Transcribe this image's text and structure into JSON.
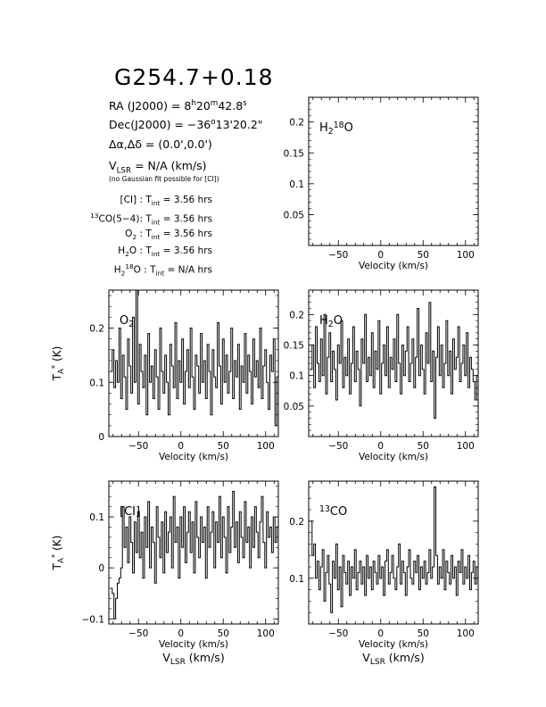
{
  "header": {
    "title": "G254.7+0.18",
    "ra_label": "RA (J2000) =",
    "ra_value": "8h20m42.8s",
    "ra_h": "8",
    "ra_m": "20",
    "ra_s": "42.8",
    "dec_label": "Dec(J2000) =",
    "dec_value": "−36°13'20.2\"",
    "dec_deg": "−36",
    "dec_rest": "13'20.2\"",
    "offset_label": "Δα,Δδ =",
    "offset_value": "(0.0',0.0')",
    "vlsr_label": "V",
    "vlsr_sub": "LSR",
    "vlsr_value": "= N/A  (km/s)",
    "note": "(no Gaussian fit possible for [CI])"
  },
  "integrations": [
    {
      "species": "[CI] :",
      "tint": "T",
      "tint_sub": "int",
      "value": "= 3.56 hrs"
    },
    {
      "species_sup": "13",
      "species": "CO(5−4):",
      "tint": "T",
      "tint_sub": "int",
      "value": "= 3.56 hrs"
    },
    {
      "species": "O",
      "species_sub": "2",
      "species_rest": " :",
      "tint": "T",
      "tint_sub": "int",
      "value": "= 3.56 hrs"
    },
    {
      "species": "H",
      "species_sub": "2",
      "species_rest": "O :",
      "tint": "T",
      "tint_sub": "int",
      "value": "= 3.56 hrs"
    },
    {
      "species": "H",
      "species_sub": "2",
      "species_sup": "18",
      "species_rest": "O :",
      "tint": "T",
      "tint_sub": "int",
      "value": "= N/A hrs"
    }
  ],
  "axis_text": {
    "velocity": "Velocity (km/s)",
    "vlsr": "V",
    "vlsr_sub": "LSR",
    "vlsr_unit": " (km/s)",
    "ylabel": "T",
    "ylabel_sub": "A",
    "ylabel_sup": "*",
    "ylabel_unit": " (K)"
  },
  "chart_data": [
    {
      "type": "line",
      "panel": "H2 18O",
      "label": "H",
      "label_sub": "2",
      "label_sup": "18",
      "label_rest": "O",
      "xlim": [
        -85,
        115
      ],
      "ylim": [
        0,
        0.24
      ],
      "xticks": [
        -50,
        0,
        50,
        100
      ],
      "yticks": [
        0.05,
        0.1,
        0.15,
        0.2
      ],
      "ytick_labels": [
        "0.05",
        "0.1",
        "0.15",
        "0.2"
      ],
      "x": [],
      "y": []
    },
    {
      "type": "line",
      "panel": "O2",
      "label": "O",
      "label_sub": "2",
      "label_rest": "",
      "xlim": [
        -85,
        115
      ],
      "ylim": [
        0,
        0.27
      ],
      "xticks": [
        -50,
        0,
        50,
        100
      ],
      "yticks": [
        0,
        0.1,
        0.2
      ],
      "ytick_labels": [
        "0",
        "0.1",
        "0.2"
      ],
      "x": [
        -82,
        -80,
        -78,
        -76,
        -74,
        -72,
        -70,
        -68,
        -66,
        -64,
        -62,
        -60,
        -58,
        -56,
        -54,
        -52,
        -50,
        -48,
        -46,
        -44,
        -42,
        -40,
        -38,
        -36,
        -34,
        -32,
        -30,
        -28,
        -26,
        -24,
        -22,
        -20,
        -18,
        -16,
        -14,
        -12,
        -10,
        -8,
        -6,
        -4,
        -2,
        0,
        2,
        4,
        6,
        8,
        10,
        12,
        14,
        16,
        18,
        20,
        22,
        24,
        26,
        28,
        30,
        32,
        34,
        36,
        38,
        40,
        42,
        44,
        46,
        48,
        50,
        52,
        54,
        56,
        58,
        60,
        62,
        64,
        66,
        68,
        70,
        72,
        74,
        76,
        78,
        80,
        82,
        84,
        86,
        88,
        90,
        92,
        94,
        96,
        98,
        100,
        102,
        104,
        106,
        108,
        110,
        112,
        114
      ],
      "y": [
        0.12,
        0.16,
        0.09,
        0.14,
        0.1,
        0.2,
        0.07,
        0.15,
        0.11,
        0.05,
        0.18,
        0.13,
        0.08,
        0.22,
        0.1,
        0.27,
        0.06,
        0.17,
        0.12,
        0.09,
        0.15,
        0.04,
        0.19,
        0.1,
        0.13,
        0.07,
        0.16,
        0.11,
        0.05,
        0.2,
        0.12,
        0.08,
        0.15,
        0.1,
        0.04,
        0.17,
        0.13,
        0.09,
        0.21,
        0.07,
        0.14,
        0.1,
        0.18,
        0.06,
        0.12,
        0.16,
        0.09,
        0.2,
        0.11,
        0.05,
        0.15,
        0.13,
        0.08,
        0.19,
        0.1,
        0.14,
        0.07,
        0.17,
        0.12,
        0.04,
        0.16,
        0.11,
        0.09,
        0.21,
        0.13,
        0.06,
        0.18,
        0.1,
        0.15,
        0.08,
        0.12,
        0.2,
        0.07,
        0.14,
        0.11,
        0.17,
        0.05,
        0.13,
        0.1,
        0.19,
        0.08,
        0.15,
        0.12,
        0.06,
        0.18,
        0.11,
        0.14,
        0.09,
        0.2,
        0.07,
        0.13,
        0.16,
        0.1,
        0.05,
        0.15,
        0.12,
        0.18,
        0.02,
        0.11
      ]
    },
    {
      "type": "line",
      "panel": "H2O",
      "label": "H",
      "label_sub": "2",
      "label_rest": "O",
      "xlim": [
        -85,
        115
      ],
      "ylim": [
        0,
        0.24
      ],
      "xticks": [
        -50,
        0,
        50,
        100
      ],
      "yticks": [
        0.05,
        0.1,
        0.15,
        0.2
      ],
      "ytick_labels": [
        "0.05",
        "0.1",
        "0.15",
        "0.2"
      ],
      "x": [
        -82,
        -80,
        -78,
        -76,
        -74,
        -72,
        -70,
        -68,
        -66,
        -64,
        -62,
        -60,
        -58,
        -56,
        -54,
        -52,
        -50,
        -48,
        -46,
        -44,
        -42,
        -40,
        -38,
        -36,
        -34,
        -32,
        -30,
        -28,
        -26,
        -24,
        -22,
        -20,
        -18,
        -16,
        -14,
        -12,
        -10,
        -8,
        -6,
        -4,
        -2,
        0,
        2,
        4,
        6,
        8,
        10,
        12,
        14,
        16,
        18,
        20,
        22,
        24,
        26,
        28,
        30,
        32,
        34,
        36,
        38,
        40,
        42,
        44,
        46,
        48,
        50,
        52,
        54,
        56,
        58,
        60,
        62,
        64,
        66,
        68,
        70,
        72,
        74,
        76,
        78,
        80,
        82,
        84,
        86,
        88,
        90,
        92,
        94,
        96,
        98,
        100,
        102,
        104,
        106,
        108,
        110,
        112,
        114
      ],
      "y": [
        0.11,
        0.15,
        0.08,
        0.18,
        0.12,
        0.09,
        0.16,
        0.1,
        0.2,
        0.07,
        0.13,
        0.17,
        0.09,
        0.14,
        0.11,
        0.06,
        0.15,
        0.12,
        0.19,
        0.08,
        0.13,
        0.1,
        0.16,
        0.07,
        0.12,
        0.18,
        0.09,
        0.14,
        0.11,
        0.05,
        0.16,
        0.12,
        0.2,
        0.09,
        0.13,
        0.1,
        0.17,
        0.08,
        0.14,
        0.11,
        0.19,
        0.07,
        0.12,
        0.15,
        0.1,
        0.18,
        0.08,
        0.13,
        0.11,
        0.16,
        0.09,
        0.2,
        0.12,
        0.07,
        0.15,
        0.1,
        0.14,
        0.18,
        0.09,
        0.12,
        0.16,
        0.08,
        0.13,
        0.21,
        0.1,
        0.15,
        0.11,
        0.07,
        0.17,
        0.12,
        0.22,
        0.09,
        0.14,
        0.03,
        0.13,
        0.18,
        0.1,
        0.15,
        0.08,
        0.12,
        0.19,
        0.1,
        0.14,
        0.07,
        0.16,
        0.11,
        0.13,
        0.18,
        0.09,
        0.12,
        0.15,
        0.1,
        0.17,
        0.08,
        0.13,
        0.11,
        0.09,
        0.06,
        0.1
      ]
    },
    {
      "type": "line",
      "panel": "[CI]",
      "label": "[CI]",
      "label_rest": "",
      "xlim": [
        -85,
        115
      ],
      "ylim": [
        -0.11,
        0.17
      ],
      "xticks": [
        -50,
        0,
        50,
        100
      ],
      "yticks": [
        -0.1,
        0,
        0.1
      ],
      "ytick_labels": [
        "−0.1",
        "0",
        "0.1"
      ],
      "x": [
        -82,
        -80,
        -78,
        -76,
        -74,
        -72,
        -70,
        -68,
        -66,
        -64,
        -62,
        -60,
        -58,
        -56,
        -54,
        -52,
        -50,
        -48,
        -46,
        -44,
        -42,
        -40,
        -38,
        -36,
        -34,
        -32,
        -30,
        -28,
        -26,
        -24,
        -22,
        -20,
        -18,
        -16,
        -14,
        -12,
        -10,
        -8,
        -6,
        -4,
        -2,
        0,
        2,
        4,
        6,
        8,
        10,
        12,
        14,
        16,
        18,
        20,
        22,
        24,
        26,
        28,
        30,
        32,
        34,
        36,
        38,
        40,
        42,
        44,
        46,
        48,
        50,
        52,
        54,
        56,
        58,
        60,
        62,
        64,
        66,
        68,
        70,
        72,
        74,
        76,
        78,
        80,
        82,
        84,
        86,
        88,
        90,
        92,
        94,
        96,
        98,
        100,
        102,
        104,
        106,
        108,
        110,
        112,
        114
      ],
      "y": [
        -0.04,
        -0.05,
        -0.1,
        -0.06,
        -0.03,
        -0.02,
        0.0,
        0.12,
        0.04,
        0.08,
        0.01,
        0.1,
        0.05,
        -0.01,
        0.09,
        0.03,
        0.11,
        0.02,
        0.07,
        -0.02,
        0.1,
        0.04,
        0.13,
        0.0,
        0.08,
        0.05,
        -0.03,
        0.12,
        0.06,
        0.02,
        0.09,
        -0.01,
        0.11,
        0.03,
        0.07,
        0.1,
        0.0,
        0.14,
        0.05,
        0.08,
        -0.02,
        0.1,
        0.04,
        0.12,
        0.01,
        0.07,
        0.11,
        0.03,
        0.09,
        -0.01,
        0.13,
        0.06,
        0.02,
        0.1,
        0.05,
        0.08,
        -0.02,
        0.12,
        0.04,
        0.07,
        0.11,
        0.0,
        0.09,
        0.05,
        0.14,
        0.02,
        0.1,
        0.06,
        -0.01,
        0.12,
        0.03,
        0.08,
        0.15,
        0.04,
        0.09,
        0.01,
        0.11,
        0.06,
        0.02,
        0.13,
        0.05,
        0.08,
        0.0,
        0.1,
        0.04,
        0.12,
        0.07,
        0.02,
        0.09,
        0.14,
        0.05,
        0.0,
        0.11,
        0.06,
        0.08,
        0.03,
        0.1,
        0.05,
        0.08
      ]
    },
    {
      "type": "line",
      "panel": "13CO",
      "label": "CO",
      "label_sup": "13",
      "label_rest": "",
      "xlim": [
        -85,
        115
      ],
      "ylim": [
        0.02,
        0.27
      ],
      "xticks": [
        -50,
        0,
        50,
        100
      ],
      "yticks": [
        0.1,
        0.2
      ],
      "ytick_labels": [
        "0.1",
        "0.2"
      ],
      "x": [
        -82,
        -80,
        -78,
        -76,
        -74,
        -72,
        -70,
        -68,
        -66,
        -64,
        -62,
        -60,
        -58,
        -56,
        -54,
        -52,
        -50,
        -48,
        -46,
        -44,
        -42,
        -40,
        -38,
        -36,
        -34,
        -32,
        -30,
        -28,
        -26,
        -24,
        -22,
        -20,
        -18,
        -16,
        -14,
        -12,
        -10,
        -8,
        -6,
        -4,
        -2,
        0,
        2,
        4,
        6,
        8,
        10,
        12,
        14,
        16,
        18,
        20,
        22,
        24,
        26,
        28,
        30,
        32,
        34,
        36,
        38,
        40,
        42,
        44,
        46,
        48,
        50,
        52,
        54,
        56,
        58,
        60,
        62,
        64,
        66,
        68,
        70,
        72,
        74,
        76,
        78,
        80,
        82,
        84,
        86,
        88,
        90,
        92,
        94,
        96,
        98,
        100,
        102,
        104,
        106,
        108,
        110,
        112,
        114
      ],
      "y": [
        0.2,
        0.14,
        0.16,
        0.1,
        0.13,
        0.08,
        0.12,
        0.15,
        0.06,
        0.11,
        0.14,
        0.09,
        0.04,
        0.13,
        0.1,
        0.16,
        0.08,
        0.12,
        0.05,
        0.14,
        0.11,
        0.09,
        0.13,
        0.07,
        0.12,
        0.1,
        0.15,
        0.08,
        0.11,
        0.13,
        0.09,
        0.12,
        0.07,
        0.14,
        0.1,
        0.12,
        0.08,
        0.13,
        0.11,
        0.09,
        0.14,
        0.1,
        0.12,
        0.07,
        0.13,
        0.15,
        0.09,
        0.11,
        0.14,
        0.1,
        0.08,
        0.12,
        0.16,
        0.09,
        0.13,
        0.11,
        0.07,
        0.12,
        0.15,
        0.1,
        0.09,
        0.13,
        0.11,
        0.14,
        0.08,
        0.12,
        0.1,
        0.13,
        0.09,
        0.11,
        0.15,
        0.1,
        0.12,
        0.26,
        0.14,
        0.09,
        0.12,
        0.1,
        0.15,
        0.08,
        0.13,
        0.11,
        0.09,
        0.14,
        0.1,
        0.12,
        0.07,
        0.13,
        0.11,
        0.15,
        0.09,
        0.12,
        0.1,
        0.14,
        0.08,
        0.11,
        0.13,
        0.09,
        0.12
      ]
    }
  ]
}
